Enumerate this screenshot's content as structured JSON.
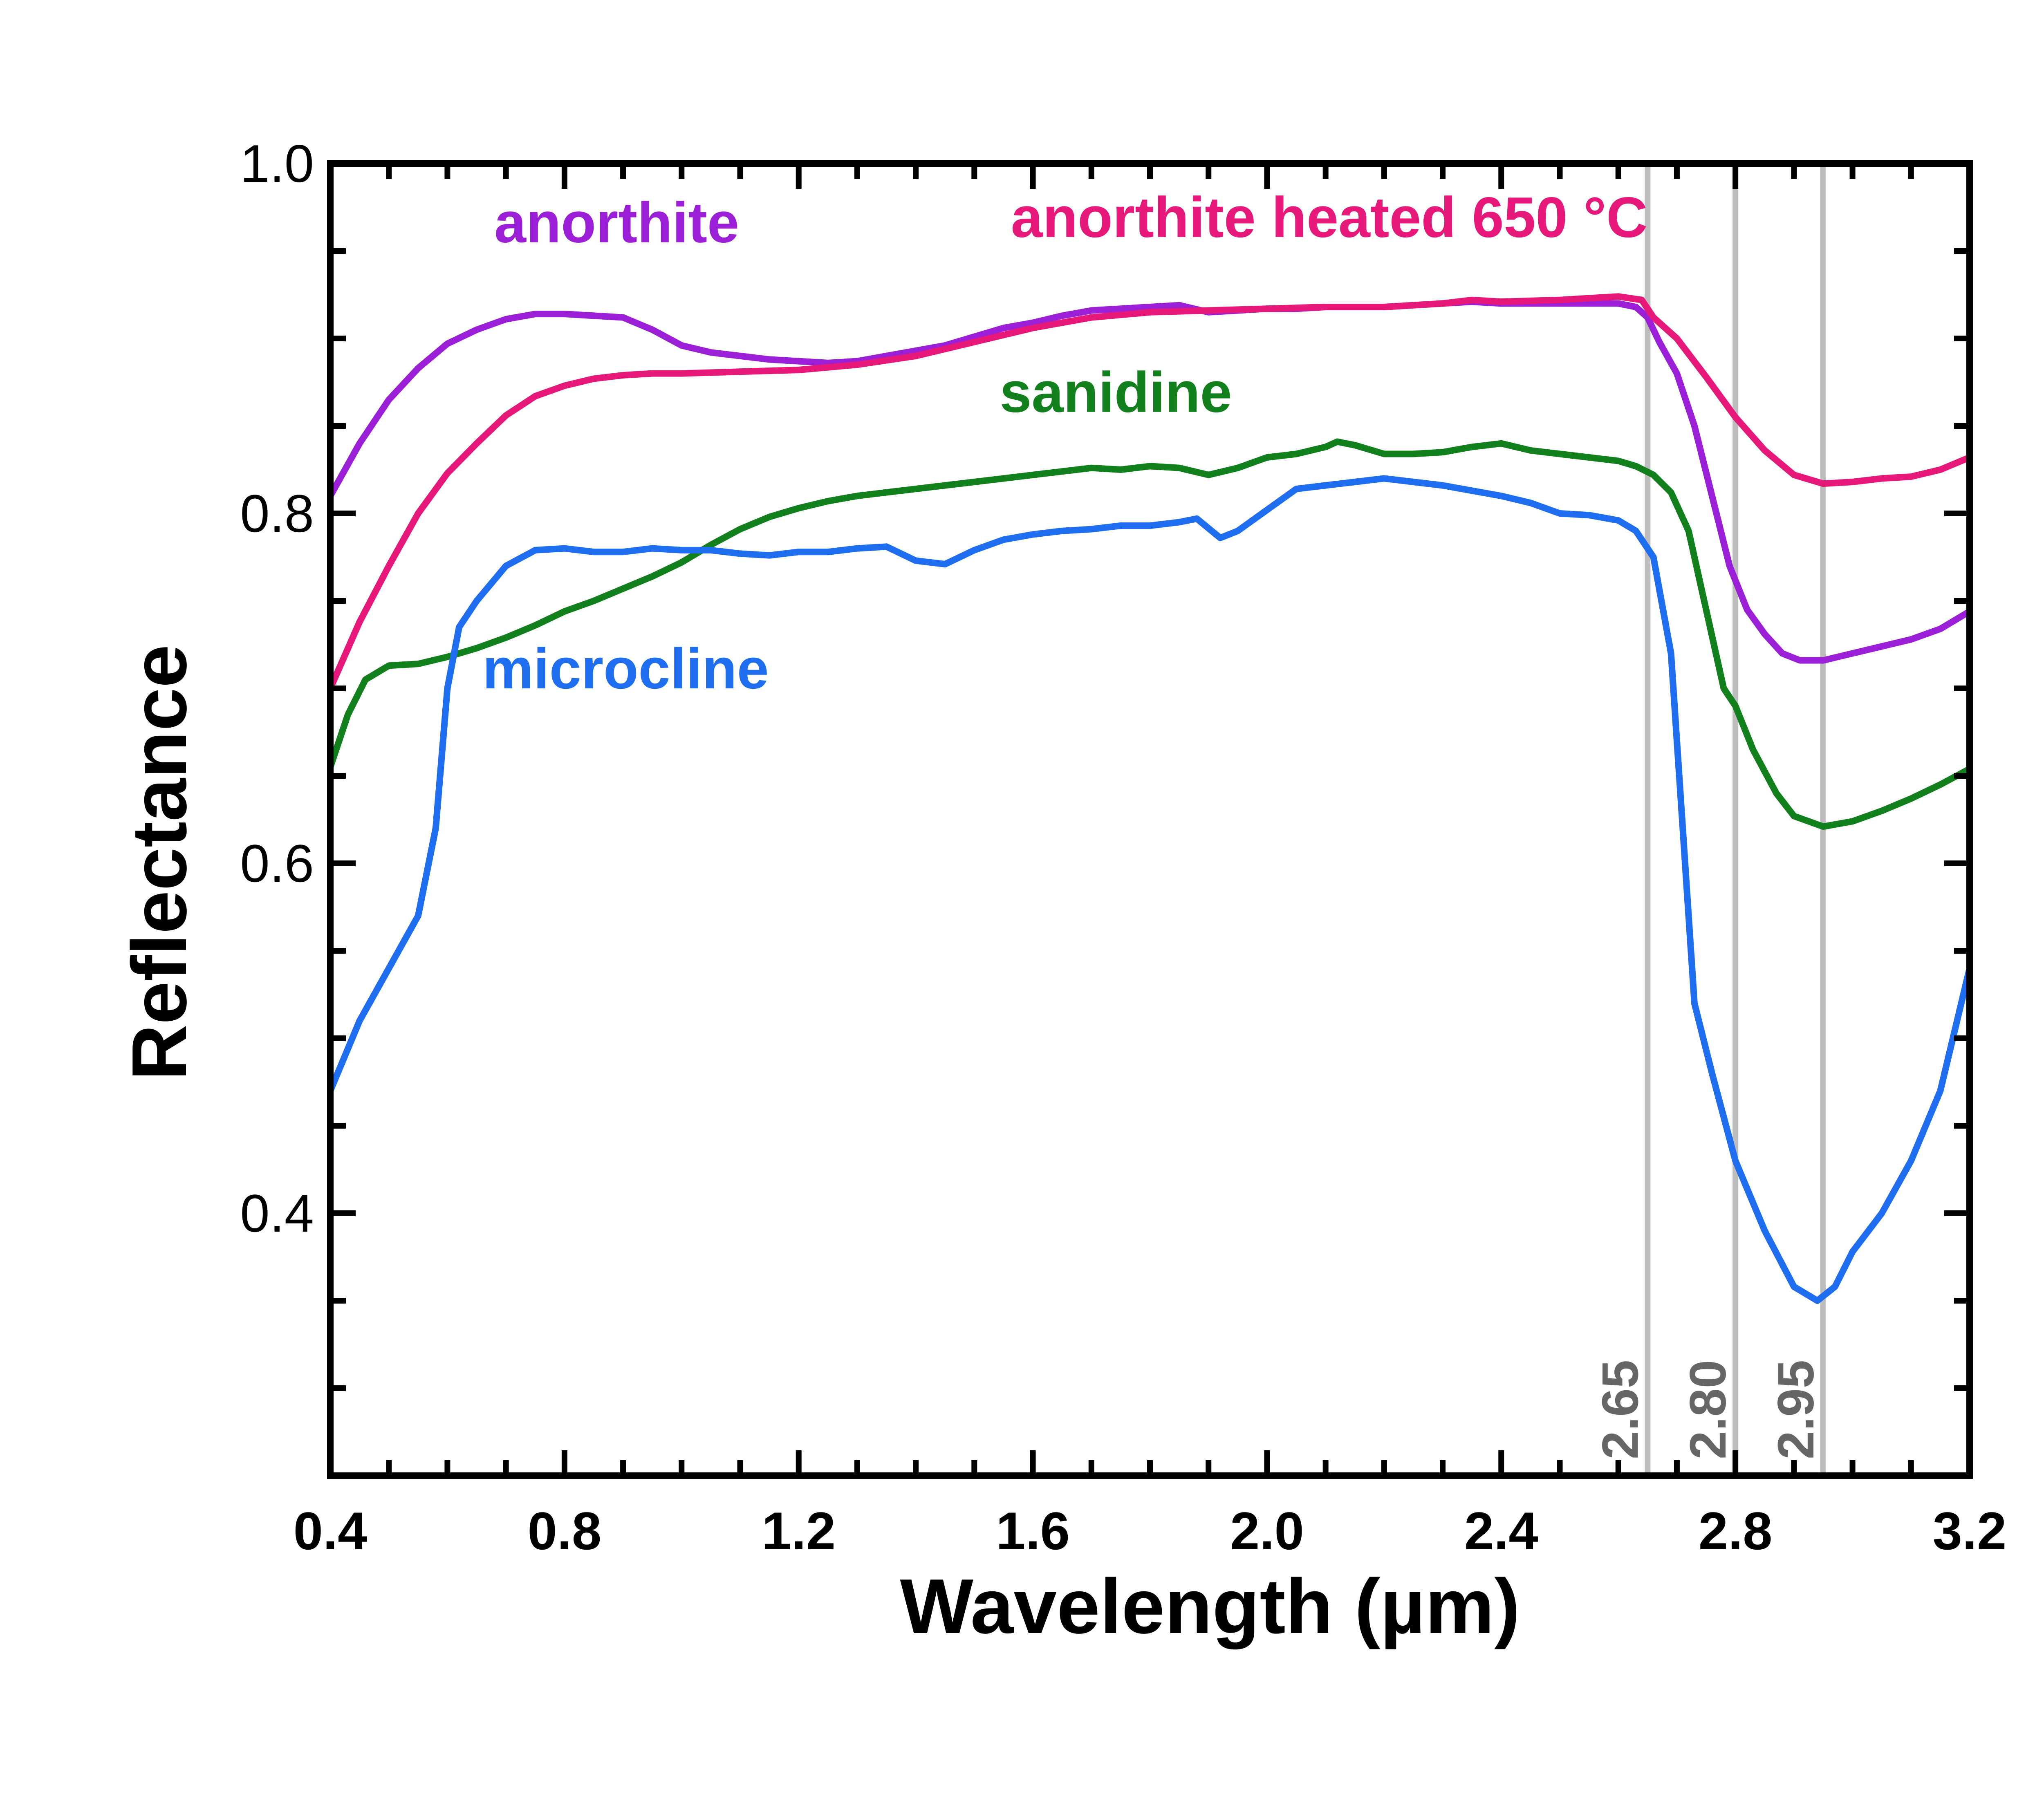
{
  "chart_data": {
    "type": "line",
    "title": "",
    "xlabel": "Wavelength (µm)",
    "ylabel": "Reflectance",
    "xlim": [
      0.4,
      3.2
    ],
    "ylim": [
      0.25,
      1.0
    ],
    "x_ticks": [
      "0.4",
      "0.8",
      "1.2",
      "1.6",
      "2.0",
      "2.4",
      "2.8",
      "3.2"
    ],
    "y_ticks": [
      "0.4",
      "0.6",
      "0.8",
      "1.0"
    ],
    "grid": false,
    "legend": "inline labels",
    "reference_lines": [
      {
        "x": 2.65,
        "label": "2.65"
      },
      {
        "x": 2.8,
        "label": "2.80"
      },
      {
        "x": 2.95,
        "label": "2.95"
      }
    ],
    "series": [
      {
        "name": "anorthite",
        "color": "#9b1fd6",
        "points": [
          [
            0.4,
            0.81
          ],
          [
            0.45,
            0.84
          ],
          [
            0.5,
            0.865
          ],
          [
            0.55,
            0.883
          ],
          [
            0.6,
            0.897
          ],
          [
            0.65,
            0.905
          ],
          [
            0.7,
            0.911
          ],
          [
            0.75,
            0.914
          ],
          [
            0.8,
            0.914
          ],
          [
            0.85,
            0.913
          ],
          [
            0.9,
            0.912
          ],
          [
            0.95,
            0.905
          ],
          [
            1.0,
            0.896
          ],
          [
            1.05,
            0.892
          ],
          [
            1.1,
            0.89
          ],
          [
            1.15,
            0.888
          ],
          [
            1.2,
            0.887
          ],
          [
            1.25,
            0.886
          ],
          [
            1.3,
            0.887
          ],
          [
            1.35,
            0.89
          ],
          [
            1.4,
            0.893
          ],
          [
            1.45,
            0.896
          ],
          [
            1.5,
            0.901
          ],
          [
            1.55,
            0.906
          ],
          [
            1.6,
            0.909
          ],
          [
            1.65,
            0.913
          ],
          [
            1.7,
            0.916
          ],
          [
            1.75,
            0.917
          ],
          [
            1.8,
            0.918
          ],
          [
            1.85,
            0.919
          ],
          [
            1.9,
            0.915
          ],
          [
            1.95,
            0.916
          ],
          [
            2.0,
            0.917
          ],
          [
            2.05,
            0.917
          ],
          [
            2.1,
            0.918
          ],
          [
            2.15,
            0.918
          ],
          [
            2.2,
            0.918
          ],
          [
            2.25,
            0.919
          ],
          [
            2.3,
            0.92
          ],
          [
            2.35,
            0.921
          ],
          [
            2.4,
            0.92
          ],
          [
            2.45,
            0.92
          ],
          [
            2.5,
            0.92
          ],
          [
            2.55,
            0.92
          ],
          [
            2.6,
            0.92
          ],
          [
            2.63,
            0.918
          ],
          [
            2.65,
            0.912
          ],
          [
            2.67,
            0.898
          ],
          [
            2.7,
            0.88
          ],
          [
            2.73,
            0.85
          ],
          [
            2.76,
            0.81
          ],
          [
            2.79,
            0.77
          ],
          [
            2.82,
            0.745
          ],
          [
            2.85,
            0.731
          ],
          [
            2.88,
            0.72
          ],
          [
            2.91,
            0.716
          ],
          [
            2.95,
            0.716
          ],
          [
            3.0,
            0.72
          ],
          [
            3.05,
            0.724
          ],
          [
            3.1,
            0.728
          ],
          [
            3.15,
            0.734
          ],
          [
            3.2,
            0.744
          ]
        ]
      },
      {
        "name": "anorthite heated 650 °C",
        "color": "#e6187a",
        "points": [
          [
            0.4,
            0.7
          ],
          [
            0.45,
            0.738
          ],
          [
            0.5,
            0.77
          ],
          [
            0.55,
            0.8
          ],
          [
            0.6,
            0.823
          ],
          [
            0.65,
            0.84
          ],
          [
            0.7,
            0.856
          ],
          [
            0.75,
            0.867
          ],
          [
            0.8,
            0.873
          ],
          [
            0.85,
            0.877
          ],
          [
            0.9,
            0.879
          ],
          [
            0.95,
            0.88
          ],
          [
            1.0,
            0.88
          ],
          [
            1.1,
            0.881
          ],
          [
            1.2,
            0.882
          ],
          [
            1.3,
            0.885
          ],
          [
            1.4,
            0.89
          ],
          [
            1.5,
            0.898
          ],
          [
            1.6,
            0.906
          ],
          [
            1.7,
            0.912
          ],
          [
            1.8,
            0.915
          ],
          [
            1.9,
            0.916
          ],
          [
            2.0,
            0.917
          ],
          [
            2.1,
            0.918
          ],
          [
            2.2,
            0.918
          ],
          [
            2.3,
            0.92
          ],
          [
            2.35,
            0.922
          ],
          [
            2.4,
            0.921
          ],
          [
            2.5,
            0.922
          ],
          [
            2.6,
            0.924
          ],
          [
            2.64,
            0.922
          ],
          [
            2.66,
            0.912
          ],
          [
            2.7,
            0.9
          ],
          [
            2.75,
            0.878
          ],
          [
            2.8,
            0.855
          ],
          [
            2.85,
            0.836
          ],
          [
            2.9,
            0.822
          ],
          [
            2.95,
            0.817
          ],
          [
            3.0,
            0.818
          ],
          [
            3.05,
            0.82
          ],
          [
            3.1,
            0.821
          ],
          [
            3.15,
            0.825
          ],
          [
            3.2,
            0.832
          ]
        ]
      },
      {
        "name": "sanidine",
        "color": "#12801d",
        "points": [
          [
            0.4,
            0.655
          ],
          [
            0.43,
            0.685
          ],
          [
            0.46,
            0.705
          ],
          [
            0.5,
            0.713
          ],
          [
            0.55,
            0.714
          ],
          [
            0.6,
            0.718
          ],
          [
            0.65,
            0.723
          ],
          [
            0.7,
            0.729
          ],
          [
            0.75,
            0.736
          ],
          [
            0.8,
            0.744
          ],
          [
            0.85,
            0.75
          ],
          [
            0.9,
            0.757
          ],
          [
            0.95,
            0.764
          ],
          [
            1.0,
            0.772
          ],
          [
            1.05,
            0.782
          ],
          [
            1.1,
            0.791
          ],
          [
            1.15,
            0.798
          ],
          [
            1.2,
            0.803
          ],
          [
            1.25,
            0.807
          ],
          [
            1.3,
            0.81
          ],
          [
            1.35,
            0.812
          ],
          [
            1.4,
            0.814
          ],
          [
            1.45,
            0.816
          ],
          [
            1.5,
            0.818
          ],
          [
            1.55,
            0.82
          ],
          [
            1.6,
            0.822
          ],
          [
            1.65,
            0.824
          ],
          [
            1.7,
            0.826
          ],
          [
            1.75,
            0.825
          ],
          [
            1.8,
            0.827
          ],
          [
            1.85,
            0.826
          ],
          [
            1.9,
            0.822
          ],
          [
            1.95,
            0.826
          ],
          [
            2.0,
            0.832
          ],
          [
            2.05,
            0.834
          ],
          [
            2.1,
            0.838
          ],
          [
            2.12,
            0.841
          ],
          [
            2.15,
            0.839
          ],
          [
            2.2,
            0.834
          ],
          [
            2.25,
            0.834
          ],
          [
            2.3,
            0.835
          ],
          [
            2.35,
            0.838
          ],
          [
            2.4,
            0.84
          ],
          [
            2.45,
            0.836
          ],
          [
            2.5,
            0.834
          ],
          [
            2.55,
            0.832
          ],
          [
            2.6,
            0.83
          ],
          [
            2.63,
            0.827
          ],
          [
            2.66,
            0.822
          ],
          [
            2.69,
            0.812
          ],
          [
            2.72,
            0.79
          ],
          [
            2.75,
            0.745
          ],
          [
            2.78,
            0.7
          ],
          [
            2.8,
            0.69
          ],
          [
            2.83,
            0.665
          ],
          [
            2.87,
            0.64
          ],
          [
            2.9,
            0.627
          ],
          [
            2.95,
            0.621
          ],
          [
            3.0,
            0.624
          ],
          [
            3.05,
            0.63
          ],
          [
            3.1,
            0.637
          ],
          [
            3.15,
            0.645
          ],
          [
            3.2,
            0.654
          ]
        ]
      },
      {
        "name": "microcline",
        "color": "#1f6ef0",
        "points": [
          [
            0.4,
            0.47
          ],
          [
            0.45,
            0.51
          ],
          [
            0.5,
            0.54
          ],
          [
            0.55,
            0.57
          ],
          [
            0.58,
            0.62
          ],
          [
            0.6,
            0.7
          ],
          [
            0.62,
            0.735
          ],
          [
            0.65,
            0.75
          ],
          [
            0.7,
            0.77
          ],
          [
            0.75,
            0.779
          ],
          [
            0.8,
            0.78
          ],
          [
            0.85,
            0.778
          ],
          [
            0.9,
            0.778
          ],
          [
            0.95,
            0.78
          ],
          [
            1.0,
            0.779
          ],
          [
            1.05,
            0.779
          ],
          [
            1.1,
            0.777
          ],
          [
            1.15,
            0.776
          ],
          [
            1.2,
            0.778
          ],
          [
            1.25,
            0.778
          ],
          [
            1.3,
            0.78
          ],
          [
            1.35,
            0.781
          ],
          [
            1.4,
            0.773
          ],
          [
            1.45,
            0.771
          ],
          [
            1.5,
            0.779
          ],
          [
            1.55,
            0.785
          ],
          [
            1.6,
            0.788
          ],
          [
            1.65,
            0.79
          ],
          [
            1.7,
            0.791
          ],
          [
            1.75,
            0.793
          ],
          [
            1.8,
            0.793
          ],
          [
            1.85,
            0.795
          ],
          [
            1.88,
            0.797
          ],
          [
            1.92,
            0.786
          ],
          [
            1.95,
            0.79
          ],
          [
            2.0,
            0.802
          ],
          [
            2.05,
            0.814
          ],
          [
            2.1,
            0.816
          ],
          [
            2.15,
            0.818
          ],
          [
            2.2,
            0.82
          ],
          [
            2.25,
            0.818
          ],
          [
            2.3,
            0.816
          ],
          [
            2.35,
            0.813
          ],
          [
            2.4,
            0.81
          ],
          [
            2.45,
            0.806
          ],
          [
            2.5,
            0.8
          ],
          [
            2.55,
            0.799
          ],
          [
            2.6,
            0.796
          ],
          [
            2.63,
            0.79
          ],
          [
            2.66,
            0.775
          ],
          [
            2.69,
            0.72
          ],
          [
            2.71,
            0.62
          ],
          [
            2.73,
            0.52
          ],
          [
            2.76,
            0.48
          ],
          [
            2.8,
            0.43
          ],
          [
            2.85,
            0.39
          ],
          [
            2.9,
            0.358
          ],
          [
            2.94,
            0.35
          ],
          [
            2.97,
            0.358
          ],
          [
            3.0,
            0.378
          ],
          [
            3.05,
            0.4
          ],
          [
            3.1,
            0.43
          ],
          [
            3.15,
            0.47
          ],
          [
            3.2,
            0.54
          ]
        ]
      }
    ]
  }
}
